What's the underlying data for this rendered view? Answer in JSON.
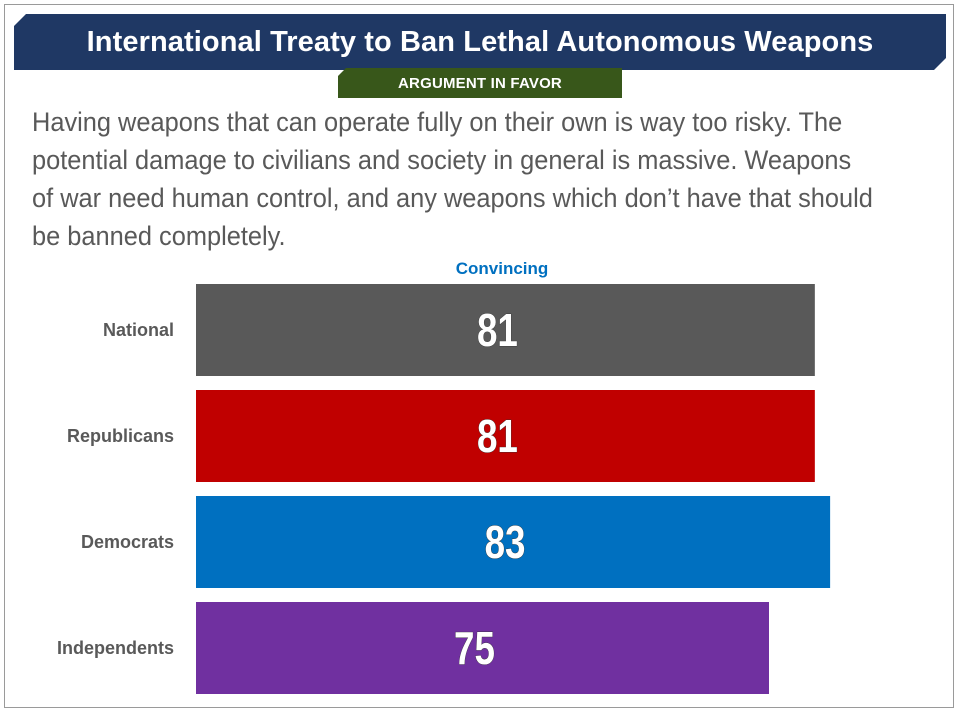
{
  "header": {
    "title": "International Treaty to Ban Lethal Autonomous Weapons",
    "tag": "ARGUMENT IN FAVOR"
  },
  "statement": "Having weapons that can operate fully on their own is way too risky. The potential damage to civilians and society in general is massive. Weapons of war need human control, and any weapons which don’t have that should be banned completely.",
  "chart_data": {
    "type": "bar",
    "orientation": "horizontal",
    "column_label": "Convincing",
    "categories": [
      "National",
      "Republicans",
      "Democrats",
      "Independents"
    ],
    "values": [
      81,
      81,
      83,
      75
    ],
    "colors": [
      "#595959",
      "#c00000",
      "#0070c0",
      "#7030a0"
    ],
    "label_color": "#0070c0",
    "xlim": [
      0,
      100
    ],
    "grid": false,
    "legend": "none"
  }
}
